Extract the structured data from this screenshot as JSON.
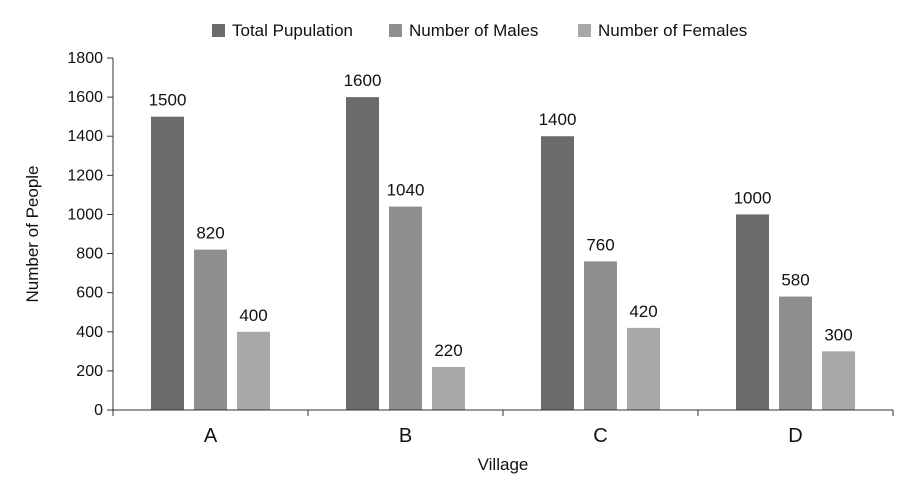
{
  "chart_data": {
    "type": "bar",
    "categories": [
      "A",
      "B",
      "C",
      "D"
    ],
    "series": [
      {
        "name": "Total Pupulation",
        "values": [
          1500,
          1600,
          1400,
          1000
        ],
        "color": "#6b6b6b",
        "labels": [
          "1500",
          "1600",
          "1400",
          "1000"
        ]
      },
      {
        "name": "Number of Males",
        "values": [
          820,
          1040,
          760,
          580
        ],
        "color": "#8e8e8e",
        "labels": [
          "820",
          "1040",
          "760",
          "580"
        ]
      },
      {
        "name": "Number of Females",
        "values": [
          400,
          220,
          420,
          300
        ],
        "color": "#a8a8a8",
        "labels": [
          "400",
          "220",
          "420",
          "300"
        ]
      }
    ],
    "xlabel": "Village",
    "ylabel": "Number of People",
    "ylim": [
      0,
      1800
    ],
    "yticks": [
      "0",
      "200",
      "400",
      "600",
      "800",
      "1000",
      "1200",
      "1400",
      "1600",
      "1800"
    ],
    "legend_position": "top",
    "grid": false
  }
}
